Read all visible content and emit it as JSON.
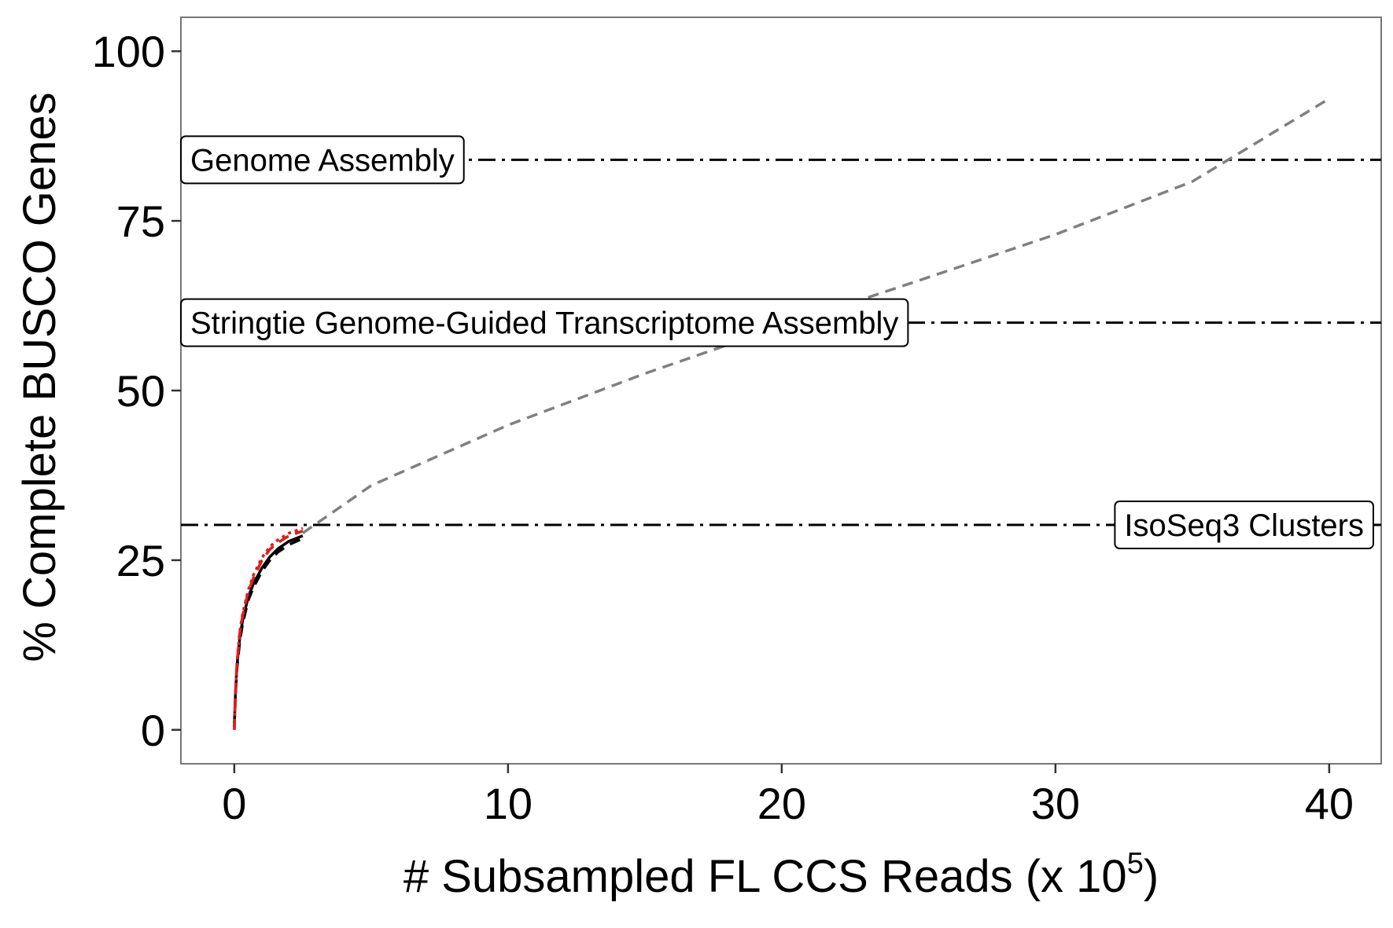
{
  "chart_data": {
    "type": "line",
    "title": "",
    "xlabel": "# Subsampled FL CCS Reads (x 10",
    "xlabel_superscript": "5",
    "xlabel_close": ")",
    "ylabel": "% Complete BUSCO Genes",
    "xlim": [
      -1.95,
      41.9
    ],
    "ylim": [
      -5,
      105
    ],
    "xticks": [
      0,
      10,
      20,
      30,
      40
    ],
    "xtick_labels": [
      "0",
      "10",
      "20",
      "30",
      "40"
    ],
    "yticks": [
      0,
      25,
      50,
      75,
      100
    ],
    "ytick_labels": [
      "0",
      "25",
      "50",
      "75",
      "100"
    ],
    "grid": false,
    "reference_lines": [
      {
        "label": "Genome Assembly",
        "y": 84,
        "label_position": "left"
      },
      {
        "label": "Stringtie Genome-Guided Transcriptome Assembly",
        "y": 60,
        "label_position": "left"
      },
      {
        "label": "IsoSeq3 Clusters",
        "y": 30.2,
        "label_position": "right"
      }
    ],
    "series": [
      {
        "style": "dashed",
        "color": "#808080",
        "x": [
          2.5,
          5,
          10,
          15,
          20,
          25,
          30,
          35,
          40
        ],
        "y": [
          29,
          36,
          44.9,
          52.5,
          59.5,
          66.2,
          73,
          80.8,
          93
        ]
      },
      {
        "style": "solid",
        "color": "#000000",
        "x": [
          0,
          0.05,
          0.1,
          0.2,
          0.3,
          0.5,
          0.7,
          1.0,
          1.3,
          1.6,
          2.0,
          2.5
        ],
        "y": [
          1,
          6,
          9.5,
          13.5,
          16,
          19.5,
          21.5,
          23.8,
          25.5,
          26.7,
          27.8,
          28.6
        ]
      },
      {
        "style": "dashed",
        "color": "#000000",
        "x": [
          0,
          0.05,
          0.1,
          0.2,
          0.3,
          0.5,
          0.7,
          1.0,
          1.3,
          1.6,
          2.0,
          2.5
        ],
        "y": [
          0.5,
          5.5,
          9,
          13,
          15.5,
          19,
          21,
          23.3,
          25,
          26.2,
          27.3,
          28.2
        ]
      },
      {
        "style": "dotted",
        "color": "#e41a1c",
        "x": [
          0,
          0.05,
          0.1,
          0.2,
          0.3,
          0.5,
          0.7,
          1.0,
          1.3,
          1.6,
          2.0,
          2.5
        ],
        "y": [
          0,
          6,
          10,
          14.5,
          17,
          20.5,
          22.8,
          25.3,
          27,
          28,
          29,
          29.7
        ]
      },
      {
        "style": "dashed",
        "color": "#e41a1c",
        "x": [
          0,
          0.05,
          0.1,
          0.2,
          0.3,
          0.5,
          0.7,
          1.0,
          1.3,
          1.6,
          2.0,
          2.5
        ],
        "y": [
          0,
          5.8,
          9.8,
          14.2,
          16.7,
          20.2,
          22.4,
          24.9,
          26.6,
          27.6,
          28.6,
          29.3
        ]
      }
    ]
  }
}
